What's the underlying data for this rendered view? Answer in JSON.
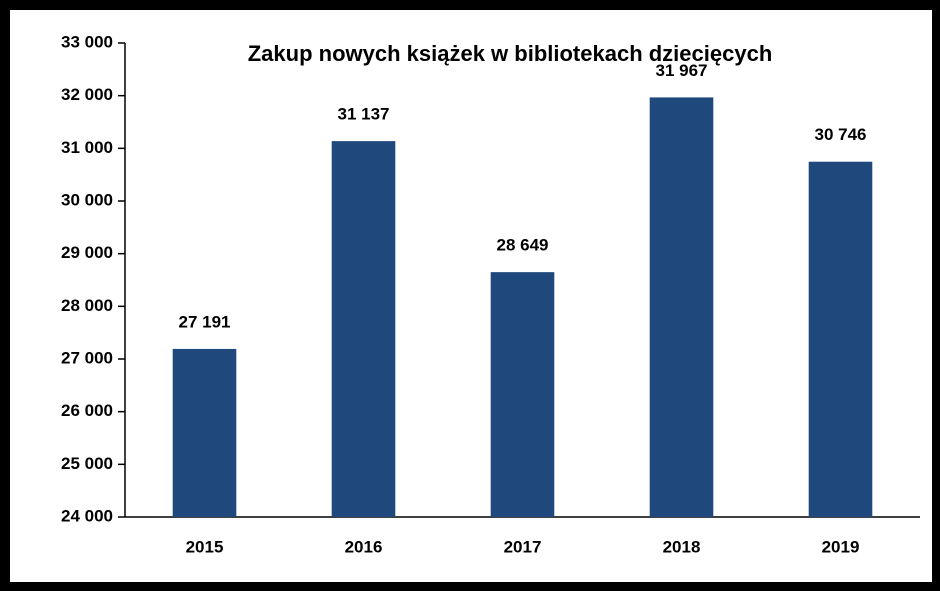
{
  "chart_data": {
    "type": "bar",
    "title": "Zakup nowych książek w bibliotekach dziecięcych",
    "categories": [
      "2015",
      "2016",
      "2017",
      "2018",
      "2019"
    ],
    "values": [
      27191,
      31137,
      28649,
      31967,
      30746
    ],
    "value_labels": [
      "27 191",
      "31 137",
      "28 649",
      "31 967",
      "30 746"
    ],
    "color": "#1f497d",
    "ylim": [
      24000,
      33000
    ],
    "yticks": [
      {
        "value": 24000,
        "label": "24 000"
      },
      {
        "value": 25000,
        "label": "25 000"
      },
      {
        "value": 26000,
        "label": "26 000"
      },
      {
        "value": 27000,
        "label": "27 000"
      },
      {
        "value": 28000,
        "label": "28 000"
      },
      {
        "value": 29000,
        "label": "29 000"
      },
      {
        "value": 30000,
        "label": "30 000"
      },
      {
        "value": 31000,
        "label": "31 000"
      },
      {
        "value": 32000,
        "label": "32 000"
      },
      {
        "value": 33000,
        "label": "33 000"
      }
    ],
    "grid": false
  }
}
